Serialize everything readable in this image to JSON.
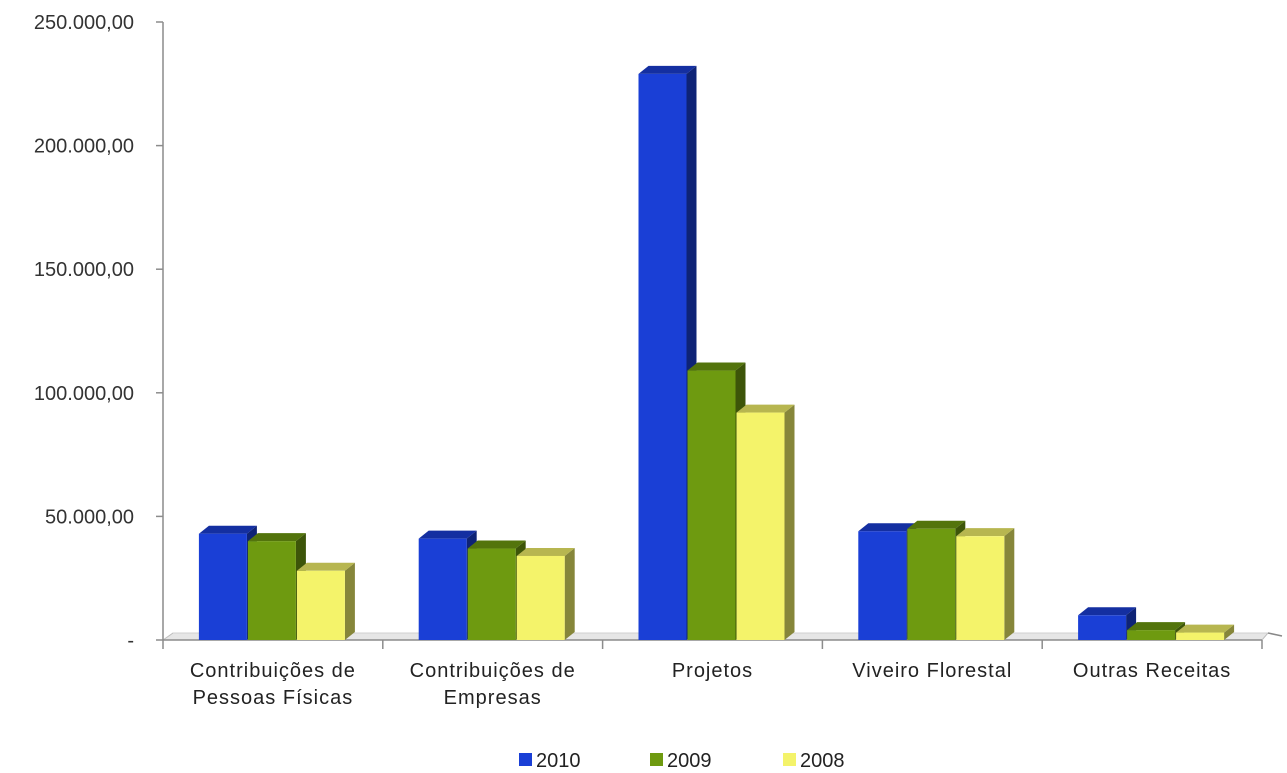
{
  "chart_data": {
    "type": "bar",
    "categories": [
      [
        "Contribuições de",
        "Pessoas Físicas"
      ],
      [
        "Contribuições de",
        "Empresas"
      ],
      [
        "Projetos"
      ],
      [
        "Viveiro Florestal"
      ],
      [
        "Outras Receitas"
      ]
    ],
    "series": [
      {
        "name": "2010",
        "color": "#1a3fd6",
        "values": [
          43000,
          41000,
          229000,
          44000,
          10000
        ]
      },
      {
        "name": "2009",
        "color": "#6e9a10",
        "values": [
          40000,
          37000,
          109000,
          45000,
          4000
        ]
      },
      {
        "name": "2008",
        "color": "#f4f36a",
        "values": [
          28000,
          34000,
          92000,
          42000,
          3000
        ]
      }
    ],
    "ylim": [
      0,
      250000
    ],
    "yticks": [
      0,
      50000,
      100000,
      150000,
      200000,
      250000
    ],
    "ytick_labels": [
      "-",
      "50.000,00",
      "100.000,00",
      "150.000,00",
      "200.000,00",
      "250.000,00"
    ],
    "legend_position": "bottom",
    "grid": false
  }
}
